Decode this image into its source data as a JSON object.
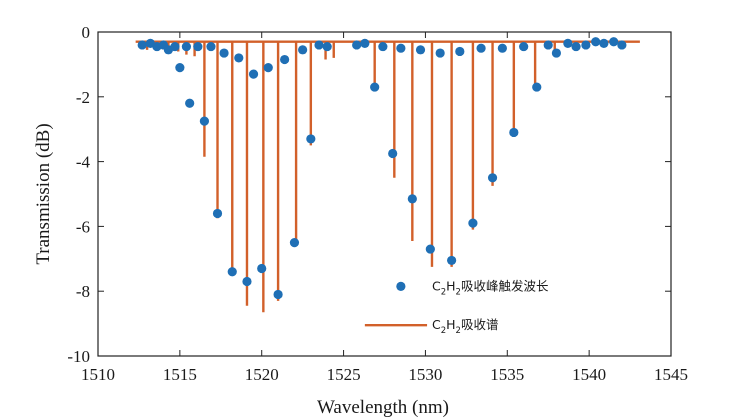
{
  "chart_data": {
    "type": "line",
    "xlabel": "Wavelength (nm)",
    "ylabel": "Transmission (dB)",
    "xlim": [
      1510,
      1545
    ],
    "ylim": [
      -10,
      0
    ],
    "xticks": [
      1510,
      1515,
      1520,
      1525,
      1530,
      1535,
      1540,
      1545
    ],
    "yticks": [
      0,
      -2,
      -4,
      -6,
      -8,
      -10
    ],
    "grid": false,
    "legend_position": "lower-right",
    "series": [
      {
        "name_parts": [
          "C",
          "2",
          "H",
          "2",
          "吸收峰触发波长"
        ],
        "kind": "scatter",
        "color": "#1f6fb5",
        "points": [
          [
            1512.7,
            -0.4
          ],
          [
            1513.2,
            -0.35
          ],
          [
            1513.6,
            -0.45
          ],
          [
            1514.0,
            -0.4
          ],
          [
            1514.3,
            -0.55
          ],
          [
            1514.7,
            -0.45
          ],
          [
            1515.0,
            -1.1
          ],
          [
            1515.4,
            -0.45
          ],
          [
            1515.6,
            -2.2
          ],
          [
            1516.1,
            -0.45
          ],
          [
            1516.5,
            -2.75
          ],
          [
            1516.9,
            -0.45
          ],
          [
            1517.3,
            -5.6
          ],
          [
            1517.7,
            -0.65
          ],
          [
            1518.2,
            -7.4
          ],
          [
            1518.6,
            -0.8
          ],
          [
            1519.1,
            -7.7
          ],
          [
            1519.5,
            -1.3
          ],
          [
            1520.0,
            -7.3
          ],
          [
            1520.4,
            -1.1
          ],
          [
            1521.0,
            -8.1
          ],
          [
            1521.4,
            -0.85
          ],
          [
            1522.0,
            -6.5
          ],
          [
            1522.5,
            -0.55
          ],
          [
            1523.0,
            -3.3
          ],
          [
            1523.5,
            -0.4
          ],
          [
            1524.0,
            -0.45
          ],
          [
            1525.8,
            -0.4
          ],
          [
            1526.3,
            -0.35
          ],
          [
            1526.9,
            -1.7
          ],
          [
            1527.4,
            -0.45
          ],
          [
            1528.0,
            -3.75
          ],
          [
            1528.5,
            -0.5
          ],
          [
            1529.2,
            -5.15
          ],
          [
            1529.7,
            -0.55
          ],
          [
            1530.3,
            -6.7
          ],
          [
            1530.9,
            -0.65
          ],
          [
            1531.6,
            -7.05
          ],
          [
            1532.1,
            -0.6
          ],
          [
            1532.9,
            -5.9
          ],
          [
            1533.4,
            -0.5
          ],
          [
            1534.1,
            -4.5
          ],
          [
            1534.7,
            -0.5
          ],
          [
            1535.4,
            -3.1
          ],
          [
            1536.0,
            -0.45
          ],
          [
            1536.8,
            -1.7
          ],
          [
            1537.5,
            -0.4
          ],
          [
            1538.0,
            -0.65
          ],
          [
            1538.7,
            -0.35
          ],
          [
            1539.2,
            -0.45
          ],
          [
            1539.8,
            -0.4
          ],
          [
            1540.4,
            -0.3
          ],
          [
            1540.9,
            -0.35
          ],
          [
            1541.5,
            -0.3
          ],
          [
            1542.0,
            -0.4
          ]
        ]
      },
      {
        "name_parts": [
          "C",
          "2",
          "H",
          "2",
          "吸收谱"
        ],
        "kind": "line",
        "color": "#d2602a",
        "baseline": -0.3,
        "x_range": [
          1512.3,
          1543.1
        ],
        "dips": [
          [
            1513.0,
            -0.55
          ],
          [
            1513.6,
            -0.55
          ],
          [
            1514.3,
            -0.6
          ],
          [
            1514.9,
            -0.6
          ],
          [
            1515.4,
            -0.7
          ],
          [
            1515.9,
            -0.75
          ],
          [
            1516.5,
            -3.85
          ],
          [
            1517.3,
            -5.75
          ],
          [
            1518.2,
            -7.45
          ],
          [
            1519.1,
            -8.45
          ],
          [
            1520.1,
            -8.65
          ],
          [
            1521.0,
            -8.3
          ],
          [
            1522.1,
            -6.5
          ],
          [
            1523.0,
            -3.5
          ],
          [
            1523.9,
            -0.85
          ],
          [
            1524.4,
            -0.8
          ],
          [
            1526.9,
            -1.75
          ],
          [
            1528.1,
            -4.5
          ],
          [
            1529.2,
            -6.45
          ],
          [
            1530.4,
            -7.25
          ],
          [
            1531.6,
            -7.25
          ],
          [
            1532.9,
            -6.1
          ],
          [
            1534.1,
            -4.75
          ],
          [
            1535.4,
            -3.2
          ],
          [
            1536.7,
            -1.75
          ],
          [
            1537.9,
            -0.6
          ]
        ]
      }
    ]
  }
}
